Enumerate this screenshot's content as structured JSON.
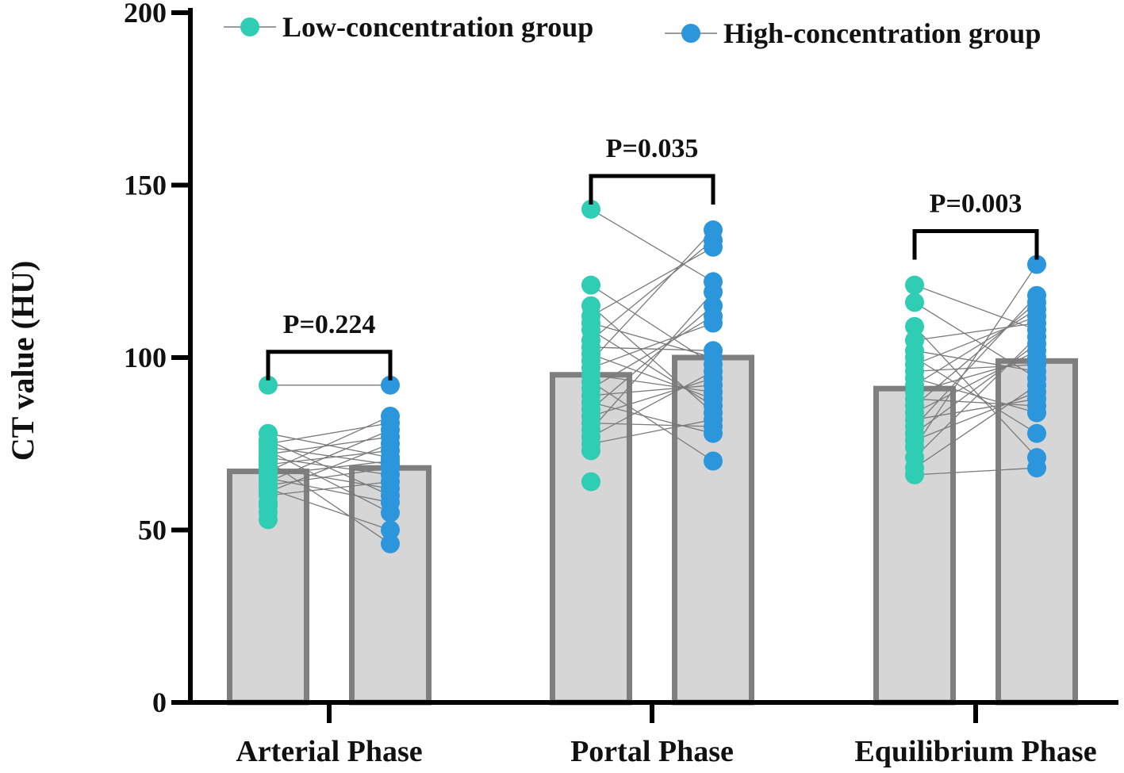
{
  "chart_data": {
    "type": "bar",
    "title": "",
    "xlabel": "",
    "ylabel": "CT value (HU)",
    "ylim": [
      0,
      200
    ],
    "yticks": [
      0,
      50,
      100,
      150,
      200
    ],
    "categories": [
      "Arterial Phase",
      "Portal Phase",
      "Equilibrium Phase"
    ],
    "series": [
      {
        "name": "Low-concentration group",
        "color": "#2ECDB4",
        "bar_means": [
          67,
          95,
          91
        ],
        "points": [
          [
            92,
            78,
            76,
            75,
            74,
            73,
            72,
            71,
            70,
            69,
            68,
            67,
            66,
            65,
            64,
            63,
            62,
            61,
            60,
            58,
            57,
            55,
            53
          ],
          [
            143,
            121,
            115,
            112,
            110,
            108,
            105,
            103,
            101,
            99,
            97,
            95,
            93,
            91,
            89,
            87,
            85,
            83,
            81,
            79,
            77,
            75,
            73,
            64
          ],
          [
            121,
            116,
            109,
            105,
            102,
            100,
            98,
            96,
            94,
            92,
            90,
            88,
            86,
            84,
            82,
            80,
            78,
            76,
            74,
            71,
            68,
            66
          ]
        ]
      },
      {
        "name": "High-concentration group",
        "color": "#2B96DC",
        "bar_means": [
          68,
          100,
          99
        ],
        "points": [
          [
            92,
            83,
            81,
            79,
            77,
            75,
            73,
            71,
            70,
            69,
            68,
            66,
            64,
            62,
            60,
            58,
            55,
            50,
            46
          ],
          [
            137,
            134,
            132,
            122,
            119,
            115,
            112,
            110,
            102,
            100,
            98,
            96,
            94,
            92,
            90,
            88,
            86,
            84,
            82,
            80,
            78,
            70
          ],
          [
            127,
            118,
            116,
            114,
            112,
            110,
            108,
            106,
            104,
            102,
            100,
            98,
            96,
            94,
            92,
            90,
            88,
            86,
            84,
            78,
            71,
            68
          ]
        ]
      }
    ],
    "comparisons": [
      {
        "category": "Arterial Phase",
        "label": "P=0.224"
      },
      {
        "category": "Portal Phase",
        "label": "P=0.035"
      },
      {
        "category": "Equilibrium Phase",
        "label": "P=0.003"
      }
    ],
    "legend": "top",
    "bar_fill": "#D6D6D6",
    "bar_stroke": "#7F7F7F",
    "line_color": "#7A7A7A"
  }
}
